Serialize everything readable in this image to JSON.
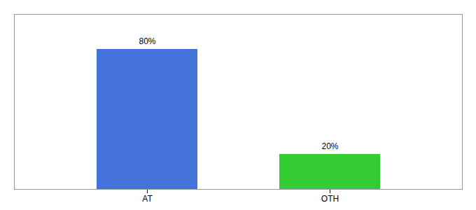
{
  "chart_data": {
    "type": "bar",
    "categories": [
      "AT",
      "OTH"
    ],
    "values": [
      80,
      20
    ],
    "colors": [
      "#4472db",
      "#33cc33"
    ],
    "value_labels": [
      "80%",
      "20%"
    ],
    "data_labels": true,
    "ylim": [
      0,
      100
    ],
    "tick_labels": "x"
  }
}
